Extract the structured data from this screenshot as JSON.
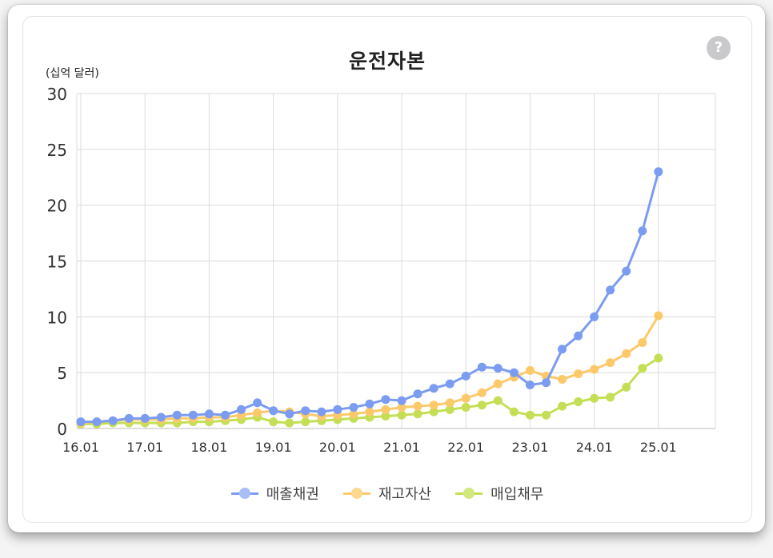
{
  "title": "운전자본",
  "unit": "(십억 달러)",
  "help_icon": "?",
  "chart_data": {
    "type": "line",
    "title": "운전자본",
    "ylabel": "(십억 달러)",
    "ylim": [
      0,
      30
    ],
    "yticks": [
      0,
      5,
      10,
      15,
      20,
      25,
      30
    ],
    "xticks": [
      "16.01",
      "17.01",
      "18.01",
      "19.01",
      "20.01",
      "21.01",
      "22.01",
      "23.01",
      "24.01",
      "25.01"
    ],
    "grid": true,
    "legend_position": "bottom",
    "x": [
      "16.01",
      "16.04",
      "16.07",
      "16.10",
      "17.01",
      "17.04",
      "17.07",
      "17.10",
      "18.01",
      "18.04",
      "18.07",
      "18.10",
      "19.01",
      "19.04",
      "19.07",
      "19.10",
      "20.01",
      "20.04",
      "20.07",
      "20.10",
      "21.01",
      "21.04",
      "21.07",
      "21.10",
      "22.01",
      "22.04",
      "22.07",
      "22.10",
      "23.01",
      "23.04",
      "23.07",
      "23.10",
      "24.01",
      "24.04",
      "24.07",
      "24.10",
      "25.01"
    ],
    "series": [
      {
        "name": "매출채권",
        "color": "#7b9cf0",
        "values": [
          0.6,
          0.6,
          0.7,
          0.9,
          0.9,
          1.0,
          1.2,
          1.2,
          1.3,
          1.2,
          1.7,
          2.3,
          1.6,
          1.3,
          1.6,
          1.5,
          1.7,
          1.9,
          2.2,
          2.6,
          2.5,
          3.1,
          3.6,
          4.0,
          4.7,
          5.5,
          5.4,
          5.0,
          3.9,
          4.1,
          7.1,
          8.3,
          10.0,
          12.4,
          14.1,
          17.7,
          23.0
        ]
      },
      {
        "name": "재고자산",
        "color": "#fcc96a",
        "values": [
          0.5,
          0.6,
          0.7,
          0.8,
          0.8,
          0.8,
          0.9,
          0.9,
          1.0,
          1.0,
          1.2,
          1.4,
          1.6,
          1.5,
          1.3,
          1.1,
          1.2,
          1.3,
          1.5,
          1.7,
          1.9,
          2.0,
          2.1,
          2.3,
          2.7,
          3.2,
          4.0,
          4.6,
          5.2,
          4.7,
          4.4,
          4.9,
          5.3,
          5.9,
          6.7,
          7.7,
          10.1
        ]
      },
      {
        "name": "매입채무",
        "color": "#c4df55",
        "values": [
          0.4,
          0.4,
          0.5,
          0.5,
          0.5,
          0.5,
          0.5,
          0.6,
          0.6,
          0.7,
          0.8,
          1.0,
          0.6,
          0.5,
          0.6,
          0.7,
          0.8,
          0.9,
          1.0,
          1.1,
          1.2,
          1.3,
          1.5,
          1.7,
          1.9,
          2.1,
          2.5,
          1.5,
          1.2,
          1.2,
          2.0,
          2.4,
          2.7,
          2.8,
          3.7,
          5.4,
          6.3
        ]
      }
    ]
  }
}
